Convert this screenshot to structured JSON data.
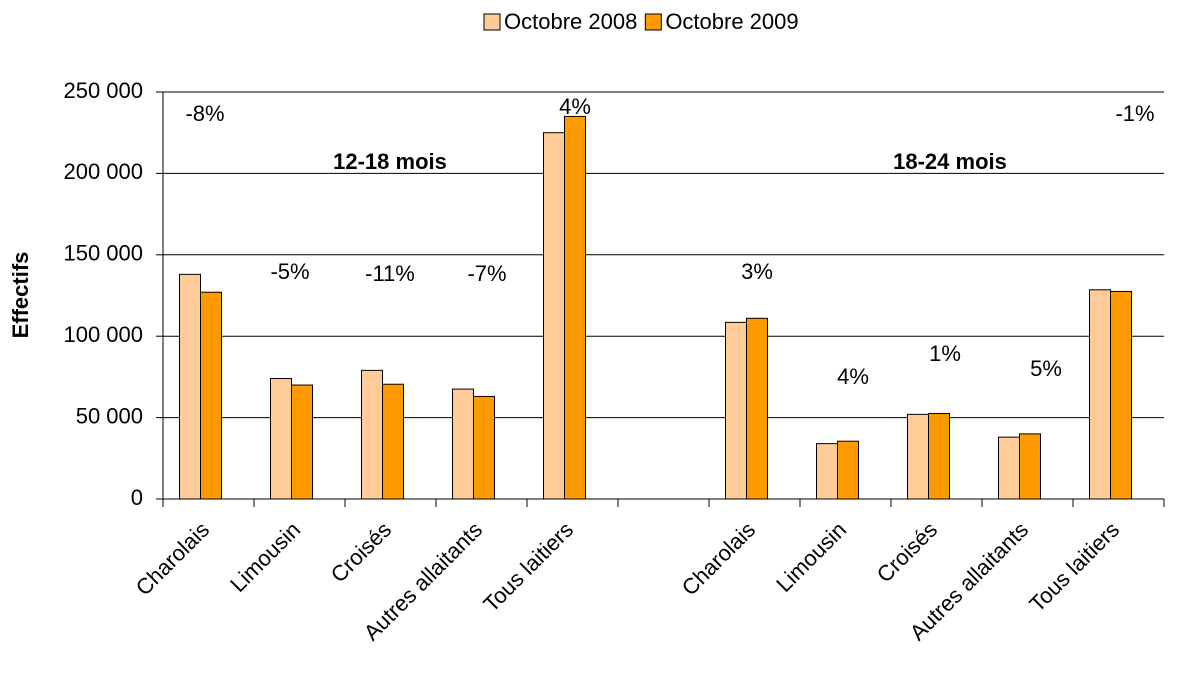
{
  "chart_data": {
    "type": "bar",
    "y_label": "Effectifs",
    "categories": [
      "Charolais",
      "Limousin",
      "Croisés",
      "Autres allaitants",
      "Tous laitiers",
      null,
      "Charolais",
      "Limousin",
      "Croisés",
      "Autres allaitants",
      "Tous laitiers"
    ],
    "series": [
      {
        "name": "Octobre 2008",
        "color": "#ffcc99",
        "values": [
          138000,
          74000,
          79000,
          67500,
          225000,
          null,
          108500,
          34000,
          52000,
          38000,
          128500
        ]
      },
      {
        "name": "Octobre 2009",
        "color": "#ff9900",
        "values": [
          127000,
          70000,
          70500,
          63000,
          235000,
          null,
          111000,
          35500,
          52500,
          40000,
          127500
        ]
      }
    ],
    "ylim": [
      0,
      250000
    ],
    "yticks": [
      0,
      {
        "value": 50000,
        "label": "50 000"
      },
      {
        "value": 100000,
        "label": "100 000"
      },
      {
        "value": 150000,
        "label": "150 000"
      },
      {
        "value": 200000,
        "label": "200 000"
      },
      {
        "value": 250000,
        "label": "250 000"
      }
    ],
    "grid": true,
    "legend": "top",
    "annotations": [
      "-8%",
      "-5%",
      "-11%",
      "-7%",
      "4%",
      "3%",
      "4%",
      "1%",
      "5%",
      "-1%"
    ],
    "group_labels": [
      "12-18 mois",
      "18-24 mois"
    ]
  }
}
